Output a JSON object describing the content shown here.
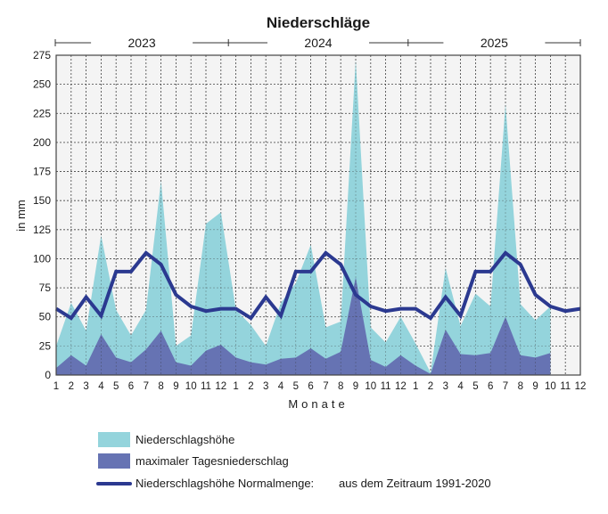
{
  "chart_data": {
    "type": "area",
    "title": "Niederschläge",
    "ylabel": "in mm",
    "xlabel": "Monate",
    "ylim": [
      0,
      275
    ],
    "yticks": [
      0,
      25,
      50,
      75,
      100,
      125,
      150,
      175,
      200,
      225,
      250,
      275
    ],
    "grid": true,
    "years": [
      "2023",
      "2024",
      "2025"
    ],
    "x_tick_labels": [
      "1",
      "2",
      "3",
      "4",
      "5",
      "6",
      "7",
      "8",
      "9",
      "10",
      "11",
      "12"
    ],
    "series": [
      {
        "name": "Niederschlagshöhe",
        "kind": "area",
        "color": "#94d4dc",
        "values": [
          25,
          62,
          38,
          120,
          56,
          34,
          56,
          167,
          25,
          34,
          130,
          140,
          56,
          43,
          25,
          62,
          79,
          112,
          41,
          46,
          271,
          41,
          28,
          50,
          27,
          2,
          92,
          42,
          70,
          59,
          233,
          61,
          47,
          59,
          null,
          null
        ]
      },
      {
        "name": "maximaler Tagesniederschlag",
        "kind": "area",
        "color": "#6673b3",
        "values": [
          6,
          17,
          8,
          35,
          15,
          11,
          22,
          38,
          11,
          8,
          21,
          26,
          15,
          11,
          9,
          14,
          15,
          23,
          14,
          20,
          84,
          13,
          7,
          17,
          8,
          1,
          39,
          18,
          17,
          19,
          50,
          17,
          15,
          19,
          null,
          null
        ]
      },
      {
        "name": "Niederschlagshöhe Normalmenge:",
        "note": "aus dem Zeitraum 1991-2020",
        "kind": "line",
        "color": "#2b3990",
        "values": [
          57,
          49,
          67,
          51,
          89,
          89,
          105,
          95,
          69,
          59,
          55,
          57,
          57,
          49,
          67,
          51,
          89,
          89,
          105,
          95,
          69,
          59,
          55,
          57,
          57,
          49,
          67,
          51,
          89,
          89,
          105,
          95,
          69,
          59,
          55,
          57
        ]
      }
    ],
    "legend_position": "bottom-left"
  }
}
